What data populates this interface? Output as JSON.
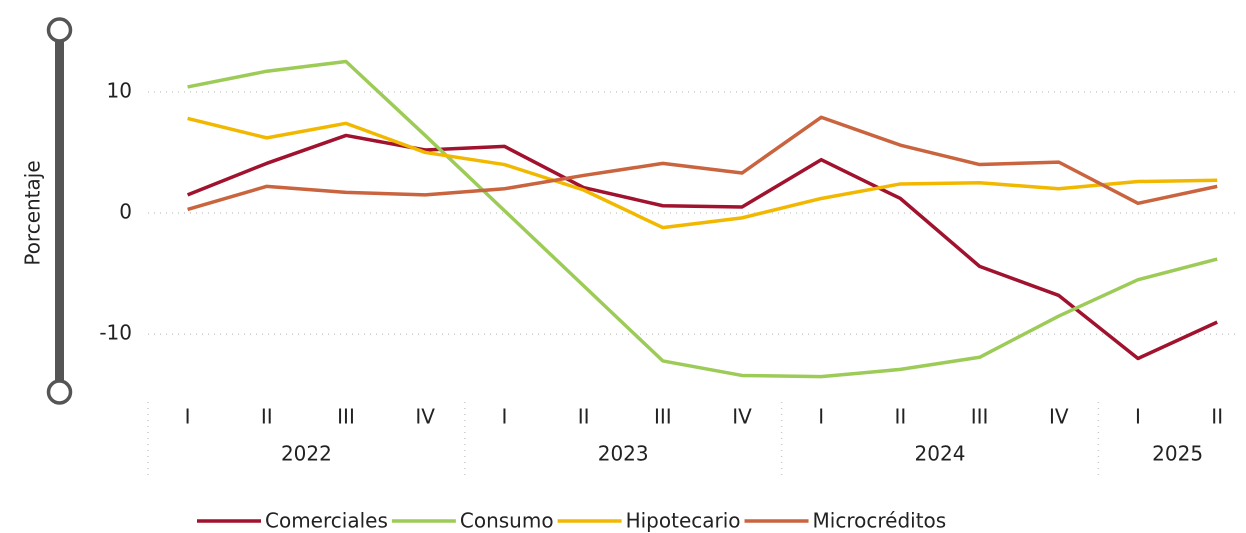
{
  "chart_data": {
    "type": "line",
    "y_axis_label": "Porcentaje",
    "categories": [
      "I",
      "II",
      "III",
      "IV",
      "I",
      "II",
      "III",
      "IV",
      "I",
      "II",
      "III",
      "IV",
      "I",
      "II"
    ],
    "year_groups": [
      {
        "name": "2022",
        "count": 4
      },
      {
        "name": "2023",
        "count": 4
      },
      {
        "name": "2024",
        "count": 4
      },
      {
        "name": "2025",
        "count": 2
      }
    ],
    "series": [
      {
        "name": "Comerciales",
        "color": "#a0122e",
        "values": [
          1.5,
          4.1,
          6.4,
          5.2,
          5.5,
          2.1,
          0.6,
          0.5,
          4.4,
          1.2,
          -4.4,
          -6.8,
          -12.0,
          -9.0
        ]
      },
      {
        "name": "Consumo",
        "color": "#9dcb57",
        "values": [
          10.4,
          11.7,
          12.5,
          6.4,
          0.2,
          -6.0,
          -12.2,
          -13.4,
          -13.5,
          -12.9,
          -11.9,
          -8.5,
          -5.5,
          -3.8
        ]
      },
      {
        "name": "Hipotecario",
        "color": "#f2b800",
        "values": [
          7.8,
          6.2,
          7.4,
          5.0,
          4.0,
          1.9,
          -1.2,
          -0.4,
          1.2,
          2.4,
          2.5,
          2.0,
          2.6,
          2.7
        ]
      },
      {
        "name": "Microcréditos",
        "color": "#c9643f",
        "values": [
          0.3,
          2.2,
          1.7,
          1.5,
          2.0,
          3.1,
          4.1,
          3.3,
          7.9,
          5.6,
          4.0,
          4.2,
          0.8,
          2.2
        ]
      }
    ],
    "ylim": [
      -14.6,
      15.1
    ],
    "yticks": [
      -10,
      0,
      10
    ],
    "grid": true
  }
}
